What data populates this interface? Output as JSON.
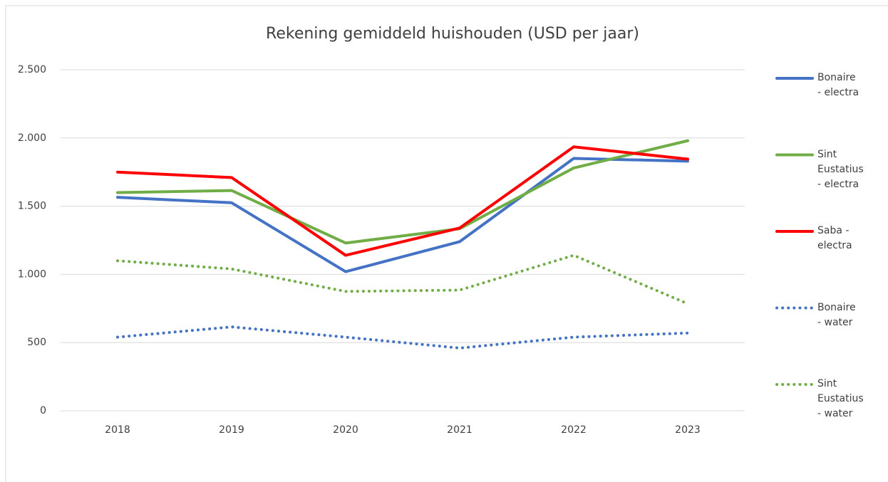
{
  "chart_data": {
    "type": "line",
    "title": "Rekening gemiddeld huishouden (USD per jaar)",
    "categories": [
      "2018",
      "2019",
      "2020",
      "2021",
      "2022",
      "2023"
    ],
    "ylim": [
      0,
      2500
    ],
    "yticks": [
      0,
      500,
      {
        "value": 1000,
        "label": "1.000"
      },
      {
        "value": 1500,
        "label": "1.500"
      },
      {
        "value": 2000,
        "label": "2.000"
      },
      {
        "value": 2500,
        "label": "2.500"
      }
    ],
    "grid": true,
    "legend": "right",
    "series": [
      {
        "name": "Bonaire - electra",
        "color": "#4472c4",
        "line_style": "solid",
        "values": [
          1565,
          1525,
          1020,
          1240,
          1850,
          1830
        ]
      },
      {
        "name": "Sint Eustatius - electra",
        "color": "#70ad47",
        "line_style": "solid",
        "values": [
          1600,
          1615,
          1230,
          1335,
          1780,
          1980
        ]
      },
      {
        "name": "Saba - electra",
        "color": "#ff0000",
        "line_style": "solid",
        "values": [
          1750,
          1710,
          1140,
          1340,
          1935,
          1845
        ]
      },
      {
        "name": "Bonaire - water",
        "color": "#4472c4",
        "line_style": "dotted",
        "values": [
          540,
          615,
          540,
          460,
          540,
          570
        ]
      },
      {
        "name": "Sint Eustatius - water",
        "color": "#70ad47",
        "line_style": "dotted",
        "values": [
          1100,
          1040,
          875,
          885,
          1140,
          785
        ]
      }
    ]
  }
}
